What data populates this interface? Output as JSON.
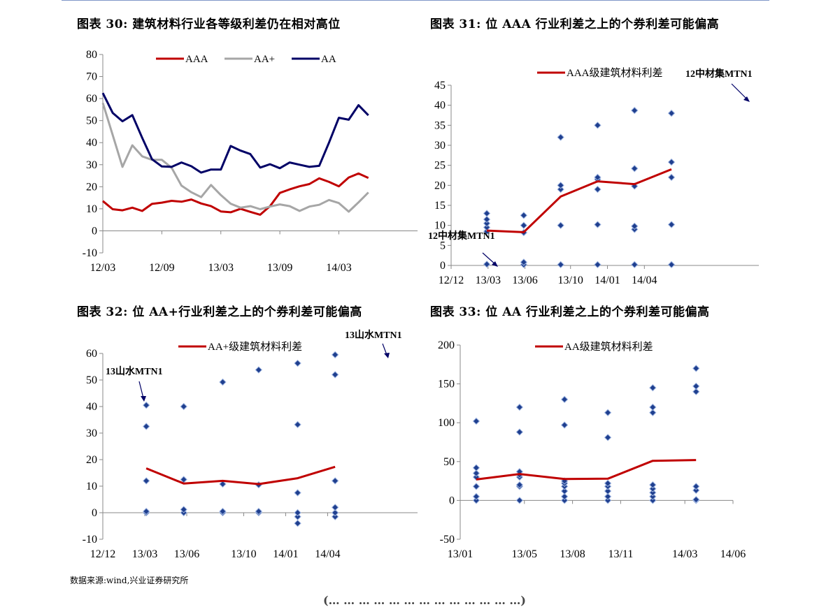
{
  "titles": {
    "c30": "图表 30:  建筑材料行业各等级利差仍在相对高位",
    "c31": "图表 31:  位 AAA 行业利差之上的个券利差可能偏高",
    "c32": "图表 32:  位 AA+行业利差之上的个券利差可能偏高",
    "c33": "图表 33:  位 AA 行业利差之上的个券利差可能偏高"
  },
  "source": "数据来源:wind,兴业证券研究所",
  "bottom_cut_text": "(…  … … … … … … …  …  … … …   …)",
  "colors": {
    "red": "#c00000",
    "gray": "#a6a6a6",
    "navy": "#000066",
    "diamond": "#1f3f8f",
    "diamond_edge": "#9fb5e0",
    "axis": "#888888"
  },
  "chart_data": [
    {
      "id": "c30",
      "type": "line",
      "ylim": [
        -10,
        80
      ],
      "yticks": [
        -10,
        0,
        10,
        20,
        30,
        40,
        50,
        60,
        70,
        80
      ],
      "xlim": [
        0,
        32
      ],
      "xticks": [
        {
          "v": 0,
          "label": "12/03"
        },
        {
          "v": 6,
          "label": "12/09"
        },
        {
          "v": 12,
          "label": "13/03"
        },
        {
          "v": 18,
          "label": "13/09"
        },
        {
          "v": 24,
          "label": "14/03"
        }
      ],
      "legend": "top",
      "series": [
        {
          "name": "AAA",
          "color": "#c00000",
          "values": [
            13.5,
            9.8,
            9.3,
            10.5,
            9.0,
            12.2,
            12.8,
            13.6,
            13.2,
            14.2,
            12.4,
            11.2,
            8.8,
            8.4,
            10.0,
            8.6,
            7.3,
            11.2,
            17.2,
            18.8,
            20.2,
            21.2,
            23.8,
            22.2,
            20.2,
            24.2,
            26.0,
            24.0
          ]
        },
        {
          "name": "AA+",
          "color": "#a6a6a6",
          "values": [
            58.0,
            43.5,
            29.0,
            38.8,
            33.8,
            32.2,
            32.2,
            28.6,
            20.5,
            17.5,
            15.3,
            20.8,
            16.2,
            12.3,
            10.5,
            11.2,
            9.8,
            11.0,
            12.0,
            11.2,
            9.0,
            11.0,
            11.8,
            14.0,
            12.6,
            8.7,
            12.9,
            17.4
          ]
        },
        {
          "name": "AA",
          "color": "#000066",
          "values": [
            62.5,
            53.5,
            49.7,
            52.5,
            42.2,
            32.5,
            29.2,
            29.0,
            31.0,
            29.3,
            26.4,
            27.8,
            27.8,
            38.5,
            36.4,
            34.8,
            28.7,
            30.2,
            28.4,
            31.0,
            30.0,
            29.0,
            29.5,
            40.0,
            51.3,
            50.4,
            57.0,
            52.4
          ]
        }
      ]
    },
    {
      "id": "c31",
      "type": "line+scatter",
      "ylim": [
        0,
        45
      ],
      "yticks": [
        0,
        5,
        10,
        15,
        20,
        25,
        30,
        35,
        40,
        45
      ],
      "xlim": [
        0,
        25
      ],
      "xticks": [
        {
          "v": 0,
          "label": "12/12"
        },
        {
          "v": 3,
          "label": "13/03"
        },
        {
          "v": 6,
          "label": "13/06"
        },
        {
          "v": 9.7,
          "label": "13/10"
        },
        {
          "v": 12.7,
          "label": "14/01"
        },
        {
          "v": 15.7,
          "label": "14/04"
        }
      ],
      "legend": "top",
      "series": [
        {
          "name": "AAA级建筑材料利差",
          "color": "#c00000",
          "x": [
            2.9,
            5.9,
            8.9,
            11.9,
            14.9,
            17.9
          ],
          "values": [
            8.7,
            8.3,
            17.2,
            21.0,
            20.3,
            24.0
          ]
        }
      ],
      "scatter_x": [
        2.9,
        5.9,
        8.9,
        11.9,
        14.9,
        17.9
      ],
      "scatter": [
        [
          0.3,
          8.5,
          9.5,
          10.5,
          11.5,
          13.0
        ],
        [
          0.2,
          0.8,
          8.2,
          10.0,
          12.5
        ],
        [
          0.2,
          10.0,
          19.0,
          20.0,
          32.0
        ],
        [
          0.2,
          10.2,
          19.0,
          21.5,
          22.0,
          35.0
        ],
        [
          0.2,
          9.0,
          9.8,
          19.8,
          24.2,
          38.7
        ],
        [
          0.2,
          10.2,
          22.0,
          25.8,
          38.0
        ]
      ],
      "annotations": [
        "12中材集MTN1",
        "12中材集MTN1"
      ]
    },
    {
      "id": "c32",
      "type": "line+scatter",
      "ylim": [
        -10,
        60
      ],
      "yticks": [
        -10,
        0,
        10,
        20,
        30,
        40,
        50,
        60
      ],
      "xlim": [
        0,
        21
      ],
      "xticks": [
        {
          "v": 0,
          "label": "12/12"
        },
        {
          "v": 2.8,
          "label": "13/03"
        },
        {
          "v": 5.6,
          "label": "13/06"
        },
        {
          "v": 9.4,
          "label": "13/10"
        },
        {
          "v": 12.2,
          "label": "14/01"
        },
        {
          "v": 15.0,
          "label": "14/04"
        }
      ],
      "legend": "top",
      "series": [
        {
          "name": "AA+级建筑材料利差",
          "color": "#c00000",
          "x": [
            2.9,
            5.4,
            8.0,
            10.4,
            13.0,
            15.5
          ],
          "values": [
            16.7,
            11.0,
            12.0,
            10.8,
            13.0,
            17.3
          ]
        },
        {
          "name": "",
          "color": "#c00000",
          "x": [],
          "values": []
        }
      ],
      "scatter_x": [
        2.9,
        5.4,
        8.0,
        10.4,
        13.0,
        15.5
      ],
      "scatter": [
        [
          0.0,
          0.5,
          12.0,
          32.5,
          40.5
        ],
        [
          0.0,
          1.2,
          12.5,
          40.0
        ],
        [
          0.0,
          0.5,
          10.8,
          49.2
        ],
        [
          0.0,
          0.5,
          10.5,
          53.8
        ],
        [
          -4.0,
          -1.5,
          0.0,
          7.5,
          33.2,
          56.3
        ],
        [
          -1.5,
          0.0,
          2.0,
          12.0,
          52.0,
          59.5
        ]
      ],
      "annotations": [
        "13山水MTN1",
        "13山水MTN1"
      ]
    },
    {
      "id": "c33",
      "type": "line+scatter",
      "ylim": [
        -50,
        200
      ],
      "yticks": [
        -50,
        0,
        50,
        100,
        150,
        200
      ],
      "xlim": [
        0,
        17
      ],
      "xticks": [
        {
          "v": 0,
          "label": "13/01"
        },
        {
          "v": 4,
          "label": "13/05"
        },
        {
          "v": 7,
          "label": "13/08"
        },
        {
          "v": 10,
          "label": "13/11"
        },
        {
          "v": 14,
          "label": "14/03"
        },
        {
          "v": 17,
          "label": "14/06"
        }
      ],
      "legend": "top",
      "series": [
        {
          "name": "AA级建筑材料利差",
          "color": "#c00000",
          "x": [
            1,
            3.7,
            6.5,
            9.2,
            12,
            14.7
          ],
          "values": [
            27.0,
            34.0,
            27.5,
            28.0,
            51.0,
            52.0
          ]
        }
      ],
      "scatter_x": [
        1,
        3.7,
        6.5,
        9.2,
        12,
        14.7
      ],
      "scatter": [
        [
          0.0,
          5.0,
          18.0,
          30.0,
          35.0,
          42.0,
          102.0
        ],
        [
          0.0,
          18.0,
          20.0,
          30.0,
          33.0,
          37.0,
          88.0,
          120.0
        ],
        [
          0.0,
          5.0,
          12.0,
          18.0,
          22.0,
          25.0,
          97.0,
          130.0
        ],
        [
          0.0,
          5.0,
          12.0,
          18.0,
          22.0,
          81.0,
          113.0
        ],
        [
          0.0,
          5.0,
          10.0,
          15.0,
          20.0,
          113.0,
          120.0,
          145.0
        ],
        [
          0.0,
          1.0,
          13.0,
          18.0,
          140.0,
          147.0,
          170.0
        ]
      ]
    }
  ]
}
